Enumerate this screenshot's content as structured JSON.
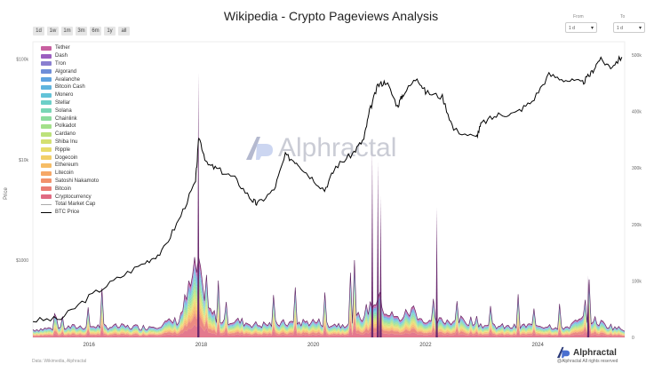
{
  "title": "Wikipedia - Crypto Pageviews Analysis",
  "range_buttons": [
    "1d",
    "1w",
    "1m",
    "3m",
    "6m",
    "1y",
    "all"
  ],
  "from_label": "From",
  "to_label": "To",
  "from_value": "1 d",
  "to_value": "1 d",
  "footer_left": "Data: Wikimedia, Alphractal",
  "brand": {
    "name": "Alphractal",
    "sub": "@Alphractal All rights reserved"
  },
  "watermark": "Alphractal",
  "colors": {
    "bg": "#ffffff",
    "btc_line": "#000000",
    "grid": "#eeeeee"
  },
  "chart_data": {
    "type": "area",
    "x_axis": {
      "ticks": [
        "2016",
        "2018",
        "2020",
        "2022",
        "2024"
      ]
    },
    "y_left": {
      "label": "Price",
      "scale": "log",
      "ticks": [
        "$100k",
        "$10k",
        "$1000"
      ]
    },
    "y_right": {
      "ticks": [
        "0",
        "100k",
        "200k",
        "300k",
        "400k",
        "500k"
      ],
      "range": [
        0,
        500000
      ]
    },
    "legend_position": "top-left",
    "stack_series": [
      {
        "name": "Tether",
        "color": "#c85fa0"
      },
      {
        "name": "Dash",
        "color": "#9b5fc0"
      },
      {
        "name": "Tron",
        "color": "#8a7fd0"
      },
      {
        "name": "Algorand",
        "color": "#6f8ed8"
      },
      {
        "name": "Avalanche",
        "color": "#5fa4e0"
      },
      {
        "name": "Bitcoin Cash",
        "color": "#5fb4de"
      },
      {
        "name": "Monero",
        "color": "#63c3d8"
      },
      {
        "name": "Stellar",
        "color": "#6ccfc8"
      },
      {
        "name": "Solana",
        "color": "#7ad6b6"
      },
      {
        "name": "Chainlink",
        "color": "#8cdc9e"
      },
      {
        "name": "Polkadot",
        "color": "#a3e08a"
      },
      {
        "name": "Cardano",
        "color": "#bce27a"
      },
      {
        "name": "Shiba Inu",
        "color": "#d4e070"
      },
      {
        "name": "Ripple",
        "color": "#e8dc6c"
      },
      {
        "name": "Dogecoin",
        "color": "#f2cf68"
      },
      {
        "name": "Ethereum",
        "color": "#f6bd66"
      },
      {
        "name": "Litecoin",
        "color": "#f6a868"
      },
      {
        "name": "Satoshi Nakamoto",
        "color": "#f2926c"
      },
      {
        "name": "Bitcoin",
        "color": "#ea7d74"
      },
      {
        "name": "Cryptocurrency",
        "color": "#e06a82"
      }
    ],
    "line_series": [
      {
        "name": "Total Market Cap",
        "color": "#aaaaaa"
      },
      {
        "name": "BTC Price",
        "color": "#000000"
      }
    ],
    "btc_price": {
      "dates": [
        "2015.0",
        "2015.5",
        "2016.0",
        "2016.5",
        "2017.0",
        "2017.3",
        "2017.6",
        "2017.9",
        "2017.96",
        "2018.1",
        "2018.3",
        "2018.6",
        "2018.9",
        "2019.0",
        "2019.3",
        "2019.5",
        "2019.7",
        "2019.9",
        "2020.2",
        "2020.4",
        "2020.7",
        "2020.9",
        "2021.0",
        "2021.15",
        "2021.3",
        "2021.5",
        "2021.6",
        "2021.85",
        "2022.0",
        "2022.3",
        "2022.5",
        "2022.9",
        "2023.0",
        "2023.3",
        "2023.6",
        "2023.9",
        "2024.2",
        "2024.5",
        "2024.8",
        "2024.95",
        "2025.1",
        "2025.3",
        "2025.5"
      ],
      "values": [
        250,
        260,
        430,
        650,
        950,
        1200,
        2500,
        6000,
        17000,
        9000,
        8000,
        6500,
        4000,
        3600,
        5000,
        11000,
        9500,
        7200,
        5000,
        8500,
        11500,
        16000,
        30000,
        55000,
        60000,
        34000,
        45000,
        66000,
        47000,
        42000,
        20000,
        16500,
        23000,
        28000,
        29000,
        38000,
        70000,
        62000,
        58000,
        72000,
        100000,
        84000,
        105000
      ]
    },
    "pageviews_total": {
      "dates": [
        "2015.0",
        "2016.0",
        "2017.0",
        "2017.6",
        "2017.95",
        "2018.05",
        "2018.3",
        "2018.7",
        "2019.0",
        "2019.5",
        "2020.0",
        "2020.5",
        "2020.9",
        "2021.05",
        "2021.15",
        "2021.3",
        "2021.5",
        "2021.8",
        "2022.0",
        "2022.4",
        "2022.9",
        "2023.0",
        "2023.5",
        "2024.0",
        "2024.5",
        "2024.9",
        "2025.1",
        "2025.5"
      ],
      "values": [
        14000,
        20000,
        18000,
        30000,
        130000,
        55000,
        33000,
        28000,
        22000,
        25000,
        28000,
        22000,
        40000,
        62000,
        70000,
        45000,
        32000,
        50000,
        25000,
        30000,
        30000,
        22000,
        18000,
        22000,
        18000,
        35000,
        26000,
        14000
      ]
    },
    "spikes": [
      {
        "date": "2017.95",
        "value": 470000
      },
      {
        "date": "2021.05",
        "value": 330000
      },
      {
        "date": "2021.15",
        "value": 310000
      },
      {
        "date": "2021.2",
        "value": 250000
      },
      {
        "date": "2022.2",
        "value": 230000
      },
      {
        "date": "2024.9",
        "value": 110000
      }
    ]
  }
}
